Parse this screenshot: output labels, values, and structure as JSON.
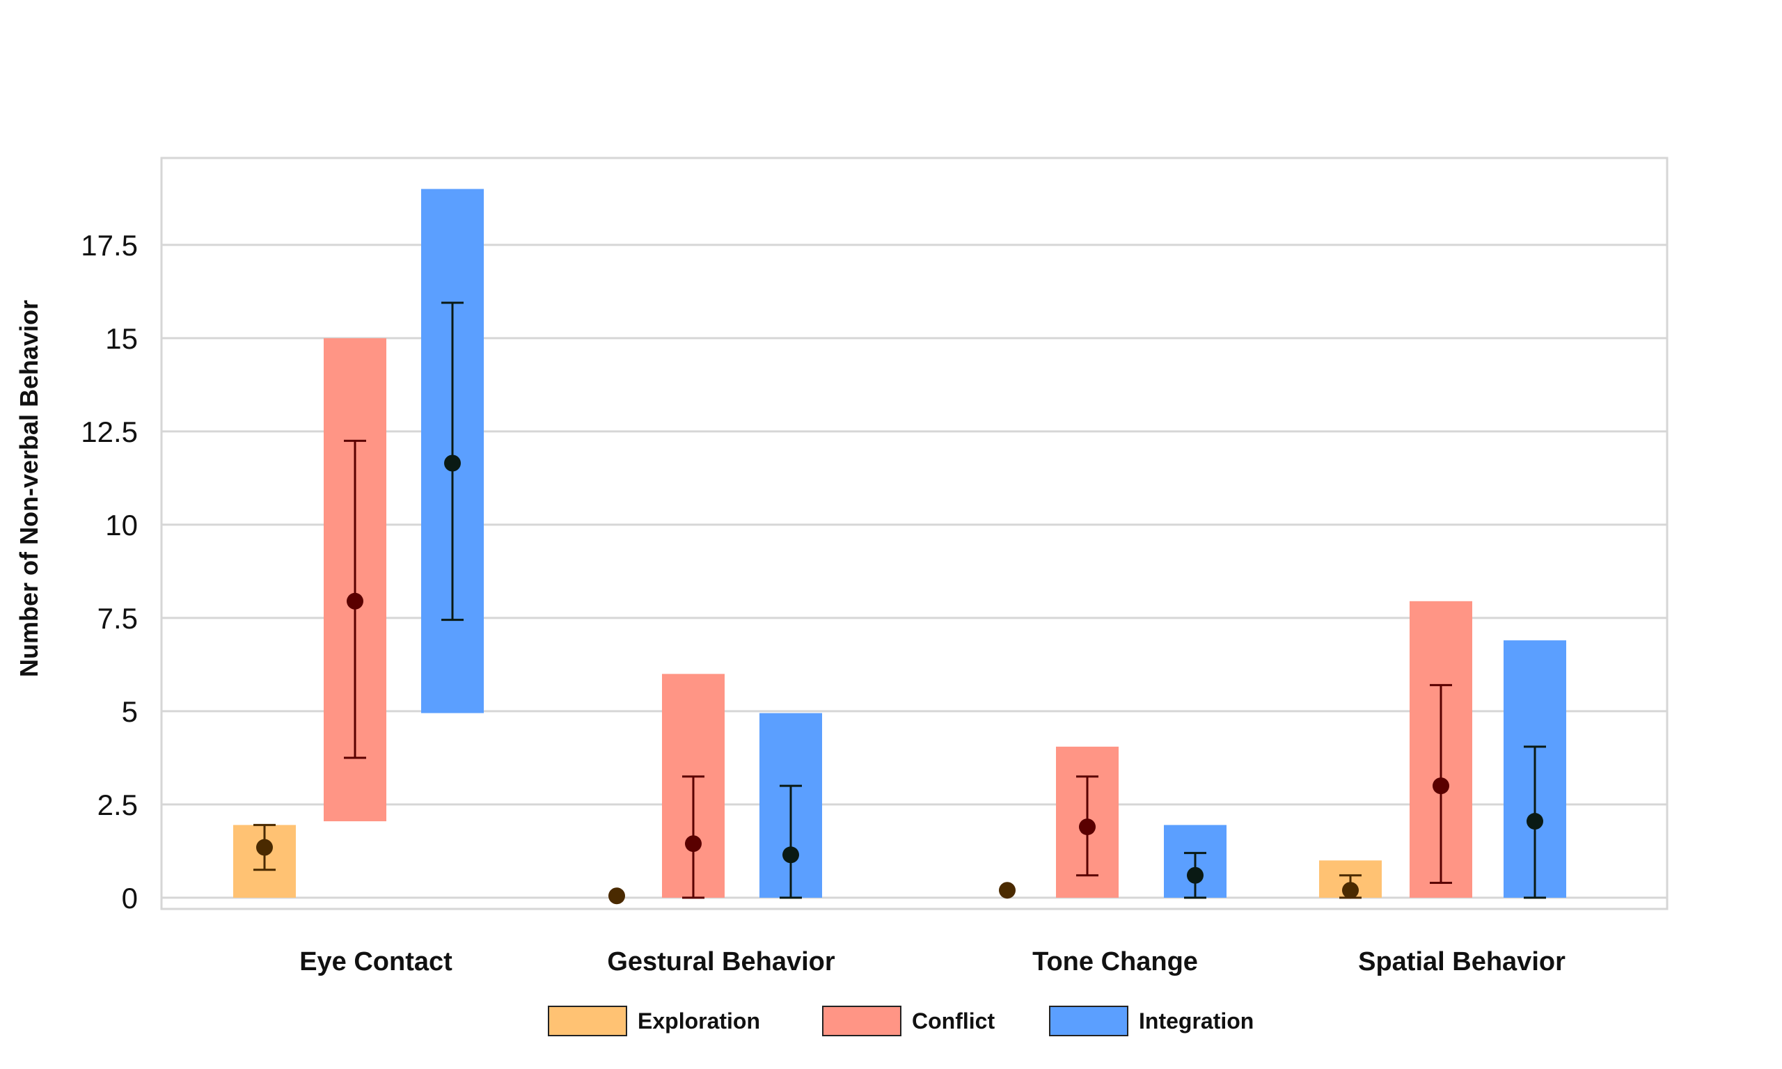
{
  "chart_data": {
    "type": "bar",
    "ylabel": "Number of Non-verbal Behavior",
    "xlabel": "",
    "ylim": [
      -0.3,
      20
    ],
    "yticks": [
      0,
      2.5,
      5,
      7.5,
      10,
      12.5,
      15,
      17.5
    ],
    "ytick_labels": [
      "0",
      "2.5",
      "5",
      "7.5",
      "10",
      "12.5",
      "15",
      "17.5"
    ],
    "grid": true,
    "legend_position": "bottom-center",
    "categories": [
      "Eye Contact",
      "Gestural Behavior",
      "Tone Change",
      "Spatial Behavior"
    ],
    "series": [
      {
        "name": "Exploration",
        "color": "#FFC273",
        "dot_color": "#4A2A00",
        "whisker_color": "#4A2A00",
        "bar_low": [
          0,
          0,
          0,
          0
        ],
        "bar_high": [
          1.95,
          0,
          0,
          1.0
        ],
        "mean": [
          1.35,
          0.05,
          0.2,
          0.2
        ],
        "err_low": [
          0.75,
          null,
          null,
          0
        ],
        "err_high": [
          1.95,
          null,
          null,
          0.6
        ]
      },
      {
        "name": "Conflict",
        "color": "#FF9585",
        "dot_color": "#5A0000",
        "whisker_color": "#5A0000",
        "bar_low": [
          2.05,
          0,
          0,
          0
        ],
        "bar_high": [
          15.0,
          6.0,
          4.05,
          7.95
        ],
        "mean": [
          7.95,
          1.45,
          1.9,
          3.0
        ],
        "err_low": [
          3.75,
          0,
          0.6,
          0.4
        ],
        "err_high": [
          12.25,
          3.25,
          3.25,
          5.7
        ]
      },
      {
        "name": "Integration",
        "color": "#5B9FFF",
        "dot_color": "#0A1A14",
        "whisker_color": "#0A1A14",
        "bar_low": [
          4.95,
          0,
          0,
          0
        ],
        "bar_high": [
          19.0,
          4.95,
          1.95,
          6.9
        ],
        "mean": [
          11.65,
          1.15,
          0.6,
          2.05
        ],
        "err_low": [
          7.45,
          0,
          0,
          0
        ],
        "err_high": [
          15.95,
          3.0,
          1.2,
          4.05
        ]
      }
    ]
  }
}
